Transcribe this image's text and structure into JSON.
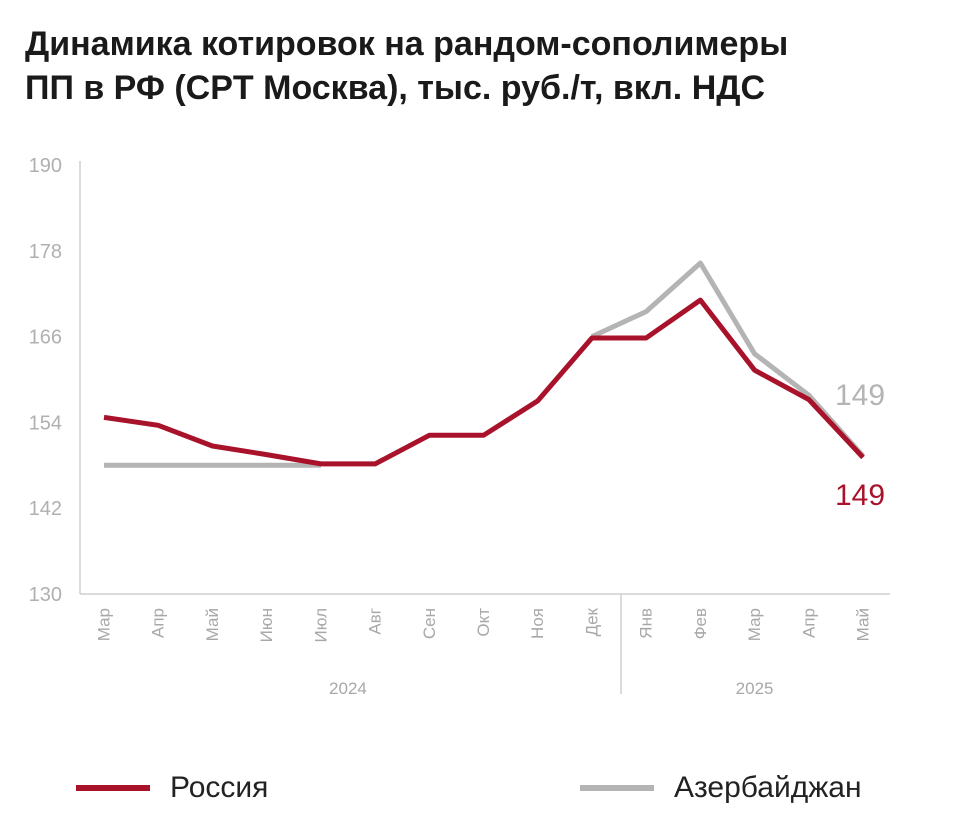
{
  "title": {
    "line1": "Динамика котировок на рандом-сополимеры",
    "line2": "ПП в РФ (CPT Москва), тыс. руб./т, вкл. НДС"
  },
  "colors": {
    "russia": "#a8132b",
    "azerbaijan": "#b4b4b4",
    "axis": "#cfcfcf"
  },
  "chart_data": {
    "type": "line",
    "categories": [
      "Мар",
      "Апр",
      "Май",
      "Июн",
      "Июл",
      "Авг",
      "Сен",
      "Окт",
      "Ноя",
      "Дек",
      "Янв",
      "Фев",
      "Мар",
      "Апр",
      "Май"
    ],
    "year_groups": [
      {
        "label": "2024",
        "from": 0,
        "to": 9
      },
      {
        "label": "2025",
        "from": 10,
        "to": 14
      }
    ],
    "ylim": [
      130,
      190
    ],
    "yticks": [
      130,
      142,
      154,
      166,
      178,
      190
    ],
    "series": [
      {
        "name": "Азербайджан",
        "color": "#b4b4b4",
        "values": [
          148.0,
          148.0,
          148.0,
          148.0,
          148.0,
          null,
          null,
          null,
          null,
          166.0,
          169.5,
          176.3,
          163.6,
          157.8,
          149.3
        ],
        "end_label": "149"
      },
      {
        "name": "Россия",
        "color": "#a8132b",
        "values": [
          154.7,
          153.6,
          150.7,
          149.5,
          148.2,
          148.2,
          152.2,
          152.2,
          157.0,
          165.8,
          165.8,
          171.1,
          161.3,
          157.2,
          149.1
        ],
        "end_label": "149"
      }
    ],
    "legend": [
      {
        "name": "Россия",
        "color": "#a8132b"
      },
      {
        "name": "Азербайджан",
        "color": "#b4b4b4"
      }
    ],
    "xlabel": "",
    "ylabel": "",
    "grid": false
  }
}
